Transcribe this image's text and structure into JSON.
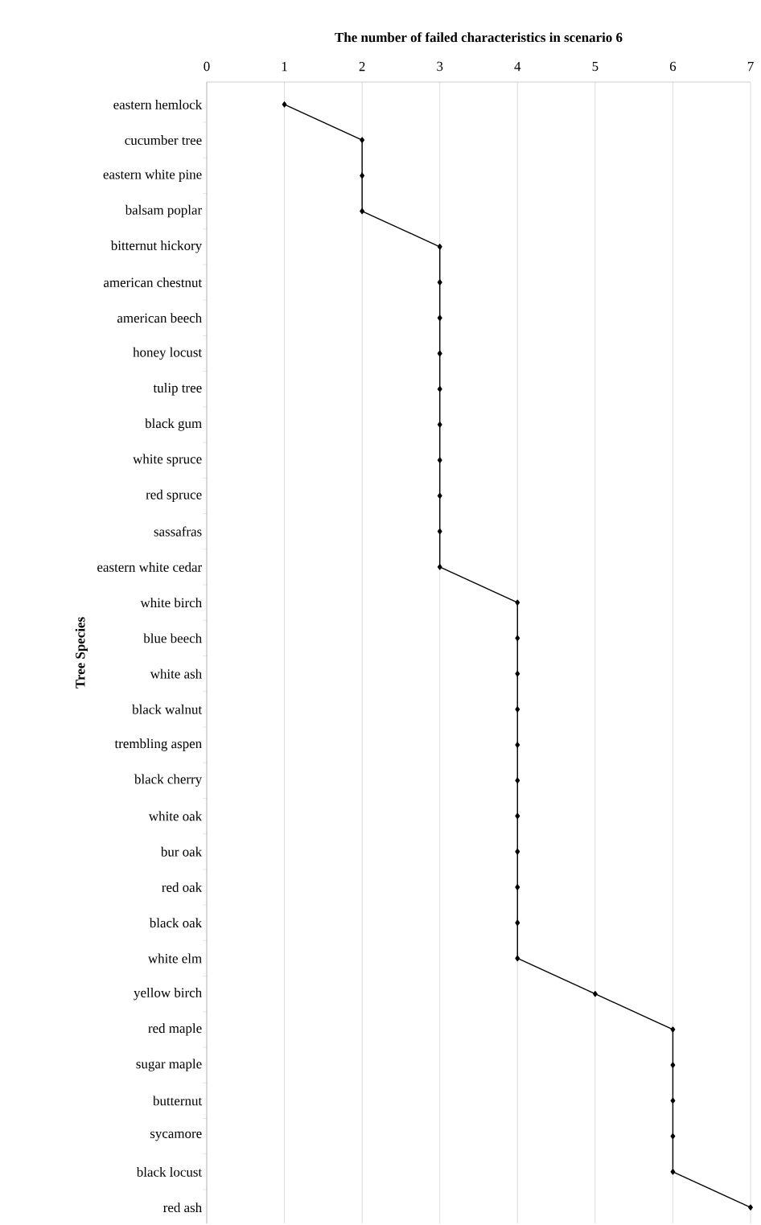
{
  "chart_data": {
    "type": "line",
    "orientation": "horizontal",
    "title": "The number of failed characteristics  in scenario 6",
    "ylabel": "Tree Species",
    "categories": [
      "eastern hemlock",
      "cucumber tree",
      "eastern white pine",
      "balsam poplar",
      "bitternut hickory",
      "american chestnut",
      "american beech",
      "honey locust",
      "tulip tree",
      "black gum",
      "white spruce",
      "red spruce",
      "sassafras",
      "eastern white cedar",
      "white birch",
      "blue beech",
      "white ash",
      "black walnut",
      "trembling aspen",
      "black cherry",
      "white oak",
      "bur oak",
      "red oak",
      "black oak",
      "white elm",
      "yellow birch",
      "red maple",
      "sugar maple",
      "butternut",
      "sycamore",
      "black locust",
      "red ash"
    ],
    "values": [
      1,
      2,
      2,
      2,
      3,
      3,
      3,
      3,
      3,
      3,
      3,
      3,
      3,
      3,
      4,
      4,
      4,
      4,
      4,
      4,
      4,
      4,
      4,
      4,
      4,
      5,
      6,
      6,
      6,
      6,
      6,
      7
    ],
    "color": "#000000",
    "marker": "diamond",
    "line_style": "solid",
    "grid": "x",
    "xlim": [
      0,
      7
    ],
    "xticks": [
      0,
      1,
      2,
      3,
      4,
      5,
      6,
      7
    ]
  }
}
